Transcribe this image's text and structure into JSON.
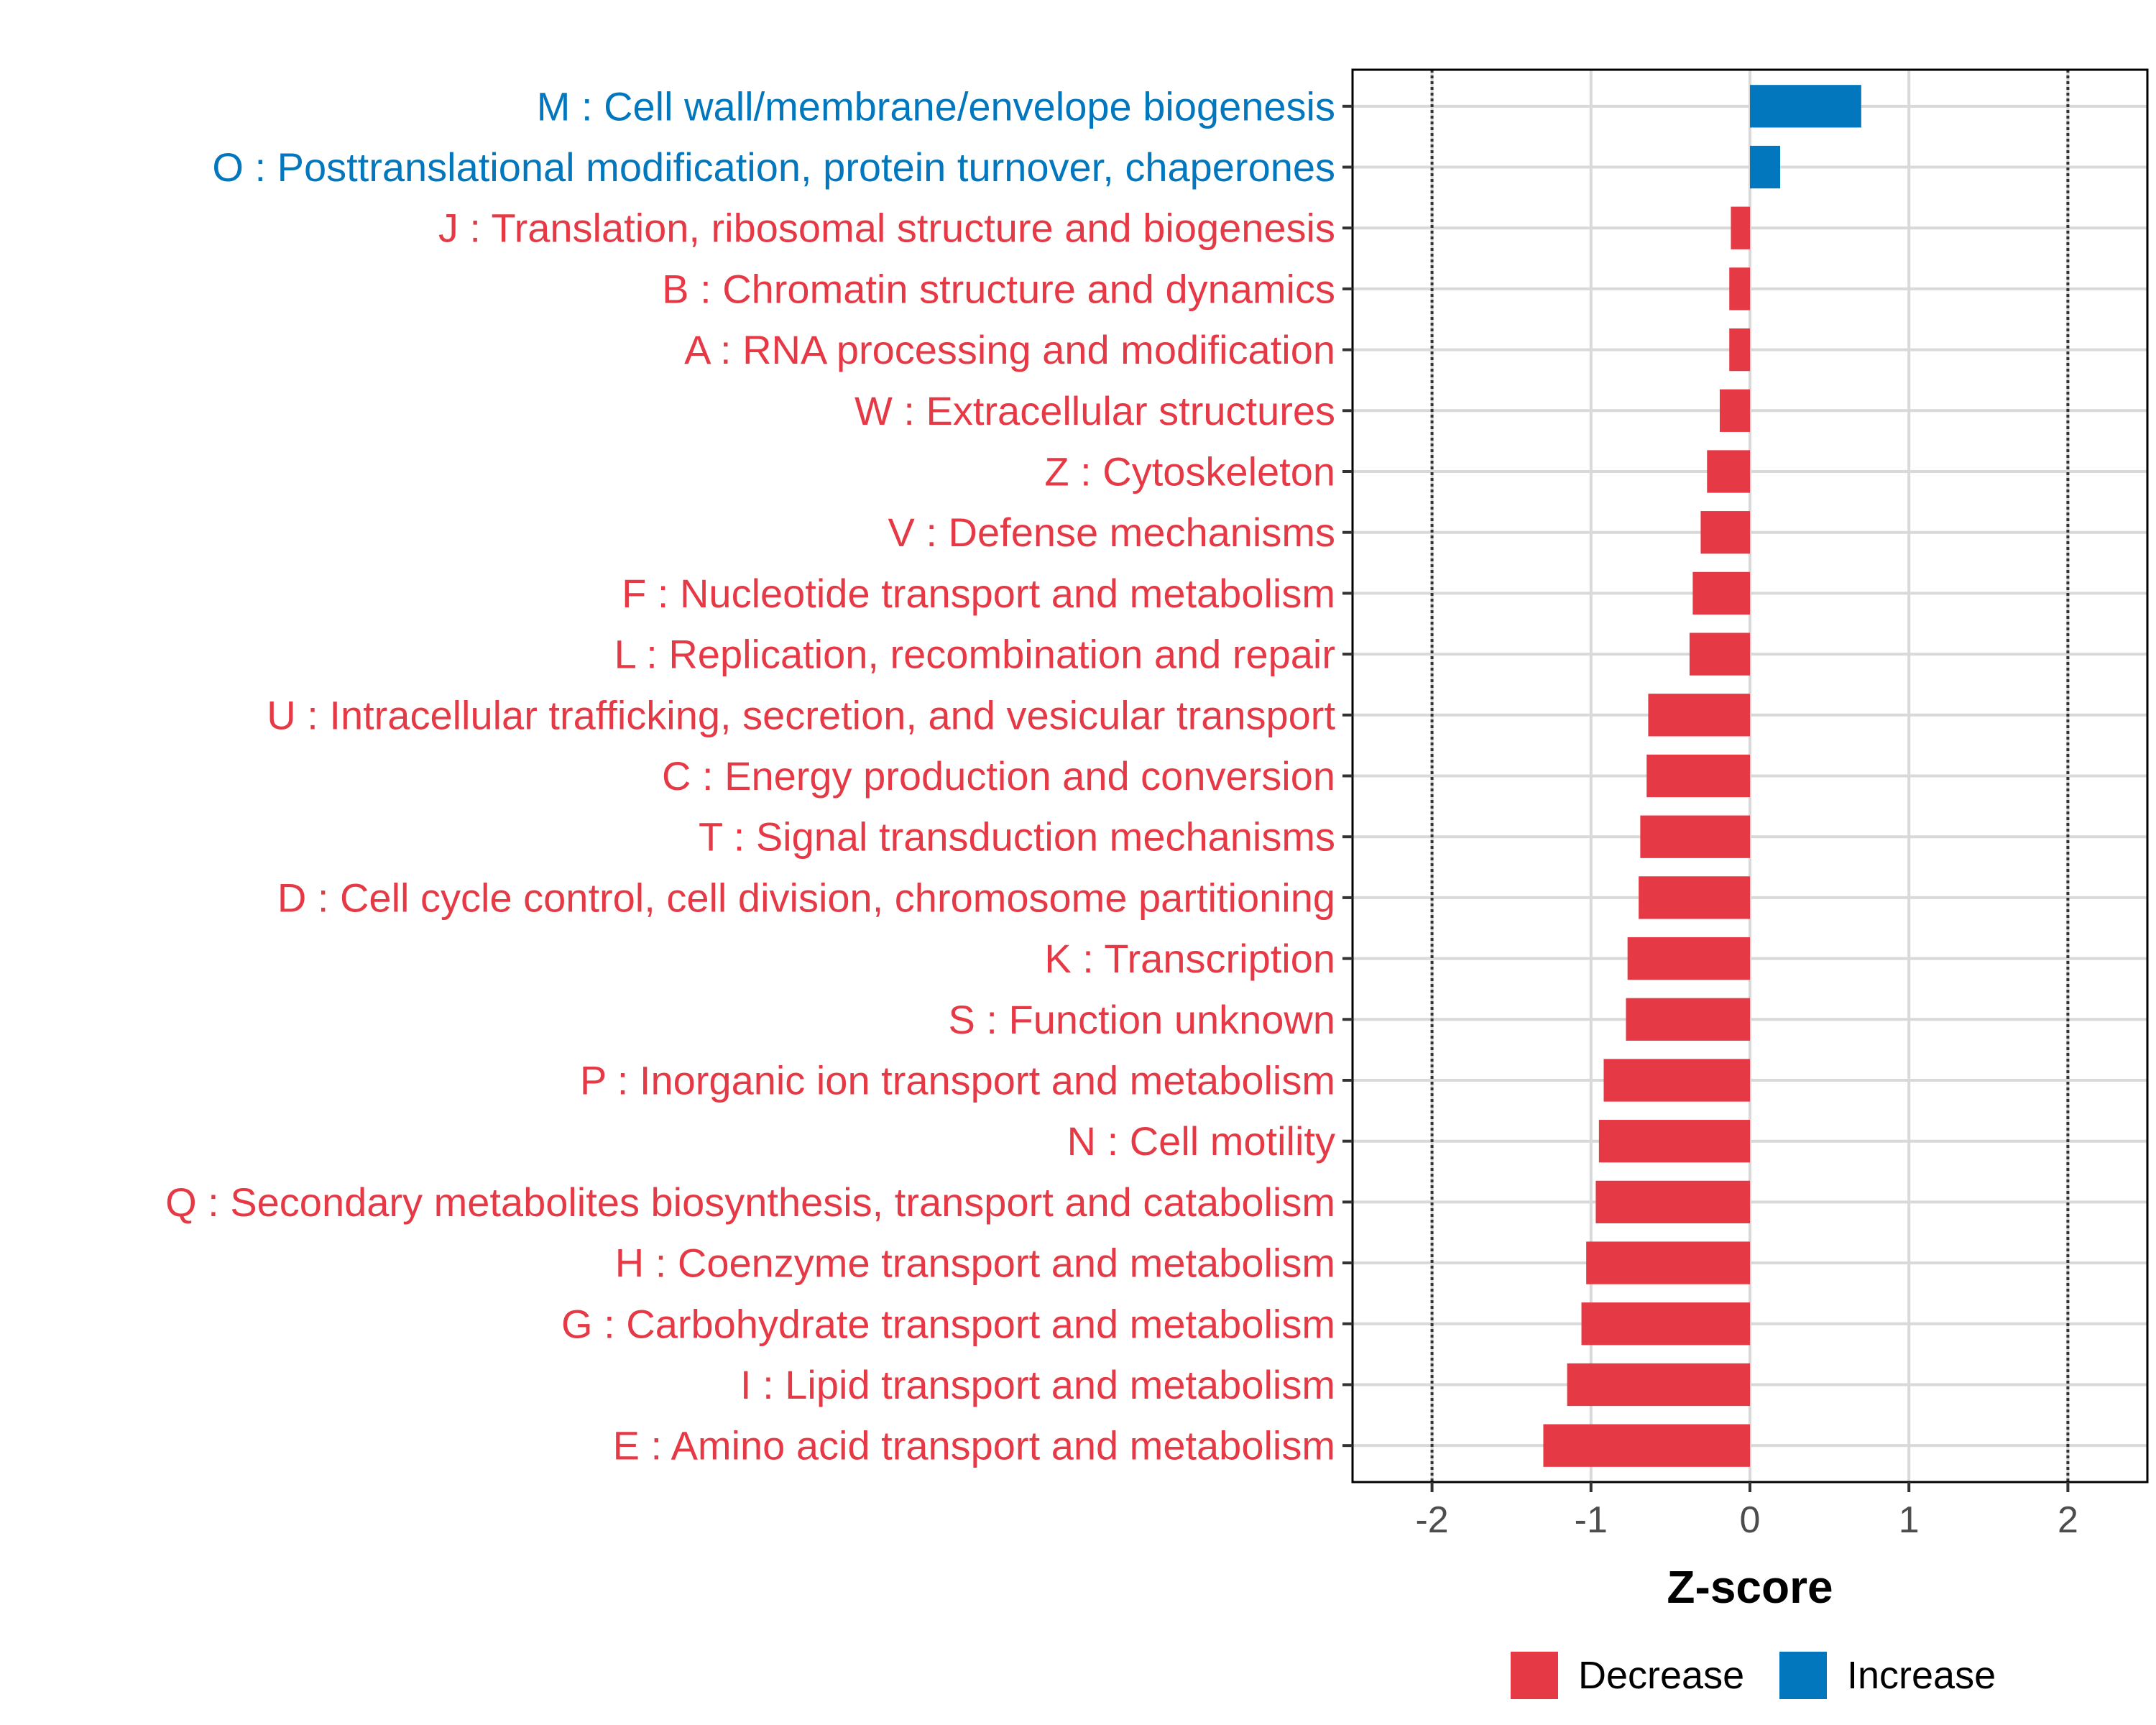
{
  "chart_data": {
    "type": "bar",
    "orientation": "horizontal",
    "title": "",
    "xlabel": "Z-score",
    "ylabel": "",
    "xlim": [
      -2.5,
      2.5
    ],
    "xticks": [
      -2,
      -1,
      0,
      1,
      2
    ],
    "xtick_labels": [
      "-2",
      "-1",
      "0",
      "1",
      "2"
    ],
    "reference_lines": [
      -2,
      2
    ],
    "grid": true,
    "legend_position": "bottom",
    "colors": {
      "Decrease": "#e63946",
      "Increase": "#0277bd"
    },
    "legend": [
      {
        "name": "Decrease",
        "color": "#e63946"
      },
      {
        "name": "Increase",
        "color": "#0277bd"
      }
    ],
    "categories": [
      "M : Cell wall/membrane/envelope biogenesis",
      "O : Posttranslational modification, protein turnover, chaperones",
      "J : Translation, ribosomal structure and biogenesis",
      "B : Chromatin structure and dynamics",
      "A : RNA processing and modification",
      "W : Extracellular structures",
      "Z : Cytoskeleton",
      "V : Defense mechanisms",
      "F : Nucleotide transport and metabolism",
      "L : Replication, recombination and repair",
      "U : Intracellular trafficking, secretion, and vesicular transport",
      "C : Energy production and conversion",
      "T : Signal transduction mechanisms",
      "D : Cell cycle control, cell division, chromosome partitioning",
      "K : Transcription",
      "S : Function unknown",
      "P : Inorganic ion transport and metabolism",
      "N : Cell motility",
      "Q : Secondary metabolites biosynthesis, transport and catabolism",
      "H : Coenzyme transport and metabolism",
      "G : Carbohydrate transport and metabolism",
      "I : Lipid transport and metabolism",
      "E : Amino acid transport and metabolism"
    ],
    "values": [
      0.7,
      0.19,
      -0.12,
      -0.13,
      -0.13,
      -0.19,
      -0.27,
      -0.31,
      -0.36,
      -0.38,
      -0.64,
      -0.65,
      -0.69,
      -0.7,
      -0.77,
      -0.78,
      -0.92,
      -0.95,
      -0.97,
      -1.03,
      -1.06,
      -1.15,
      -1.3
    ],
    "groups": [
      "Increase",
      "Increase",
      "Decrease",
      "Decrease",
      "Decrease",
      "Decrease",
      "Decrease",
      "Decrease",
      "Decrease",
      "Decrease",
      "Decrease",
      "Decrease",
      "Decrease",
      "Decrease",
      "Decrease",
      "Decrease",
      "Decrease",
      "Decrease",
      "Decrease",
      "Decrease",
      "Decrease",
      "Decrease",
      "Decrease"
    ]
  }
}
